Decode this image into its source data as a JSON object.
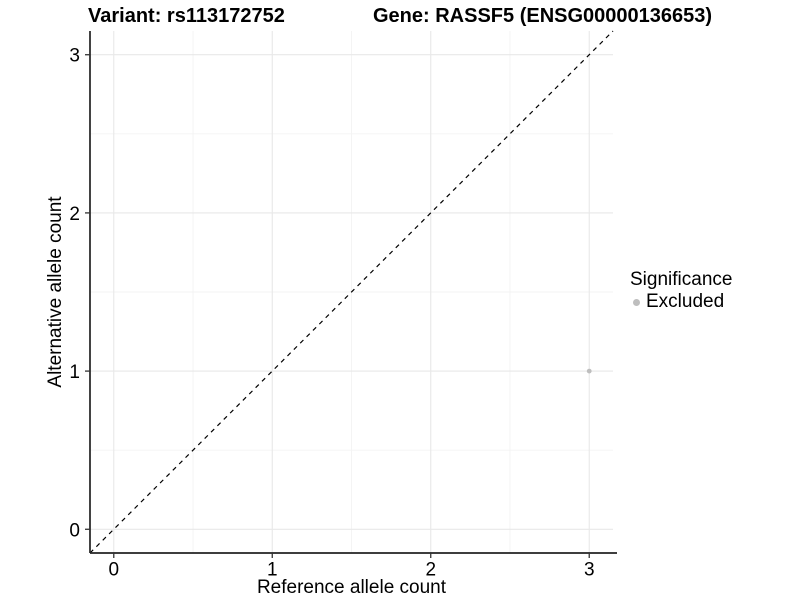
{
  "chart_data": {
    "type": "scatter",
    "title_left": "Variant: rs113172752",
    "title_right": "Gene: RASSF5 (ENSG00000136653)",
    "xlabel": "Reference allele count",
    "ylabel": "Alternative allele count",
    "xlim": [
      -0.15,
      3.15
    ],
    "ylim": [
      -0.15,
      3.15
    ],
    "x_ticks": [
      0,
      1,
      2,
      3
    ],
    "y_ticks": [
      0,
      1,
      2,
      3
    ],
    "x_minor_ticks": [
      0.5,
      1.5,
      2.5
    ],
    "y_minor_ticks": [
      0.5,
      1.5,
      2.5
    ],
    "grid": true,
    "identity_line": {
      "style": "dashed",
      "from": [
        -0.15,
        -0.15
      ],
      "to": [
        3.15,
        3.15
      ],
      "color": "#000000"
    },
    "series": [
      {
        "name": "Excluded",
        "color": "#bebebe",
        "points": [
          {
            "x": 3,
            "y": 1
          }
        ]
      }
    ],
    "legend": {
      "title": "Significance",
      "position": "right",
      "entries": [
        {
          "label": "Excluded",
          "color": "#bebebe"
        }
      ]
    }
  },
  "colors": {
    "background": "#ffffff",
    "grid_major": "#e8e8e8",
    "grid_minor": "#f3f3f3",
    "axis_line": "#222222",
    "tick_mark": "#333333",
    "text": "#000000"
  }
}
